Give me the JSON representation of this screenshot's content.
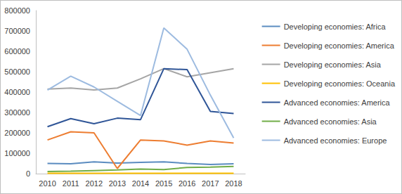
{
  "chart_data": {
    "type": "line",
    "categories": [
      "2010",
      "2011",
      "2012",
      "2013",
      "2014",
      "2015",
      "2016",
      "2017",
      "2018"
    ],
    "series": [
      {
        "name": "Developing economies: Africa",
        "color": "#5b8cc0",
        "values": [
          50000,
          48000,
          58000,
          52000,
          55000,
          58000,
          50000,
          45000,
          48000
        ]
      },
      {
        "name": "Developing economies: America",
        "color": "#ed7d31",
        "values": [
          165000,
          205000,
          200000,
          25000,
          165000,
          160000,
          140000,
          160000,
          150000
        ]
      },
      {
        "name": "Developing economies: Asia",
        "color": "#a5a5a5",
        "values": [
          415000,
          420000,
          410000,
          420000,
          465000,
          515000,
          475000,
          495000,
          515000
        ]
      },
      {
        "name": "Developing economies: Oceania",
        "color": "#ffc000",
        "values": [
          2000,
          2000,
          2000,
          2000,
          2000,
          2000,
          2000,
          2000,
          2000
        ]
      },
      {
        "name": "Advanced economies: America",
        "color": "#2f5597",
        "values": [
          230000,
          270000,
          245000,
          272000,
          265000,
          515000,
          510000,
          305000,
          295000
        ]
      },
      {
        "name": "Advanced economies: Asia",
        "color": "#70ad47",
        "values": [
          10000,
          12000,
          15000,
          18000,
          22000,
          20000,
          30000,
          32000,
          35000
        ]
      },
      {
        "name": "Advanced economies: Europe",
        "color": "#9dbbe0",
        "values": [
          410000,
          478000,
          425000,
          355000,
          285000,
          715000,
          610000,
          385000,
          175000
        ]
      }
    ],
    "ylim": [
      0,
      800000
    ],
    "yticks": [
      0,
      100000,
      200000,
      300000,
      400000,
      500000,
      600000,
      700000,
      800000
    ],
    "grid": false,
    "legend": "right"
  }
}
